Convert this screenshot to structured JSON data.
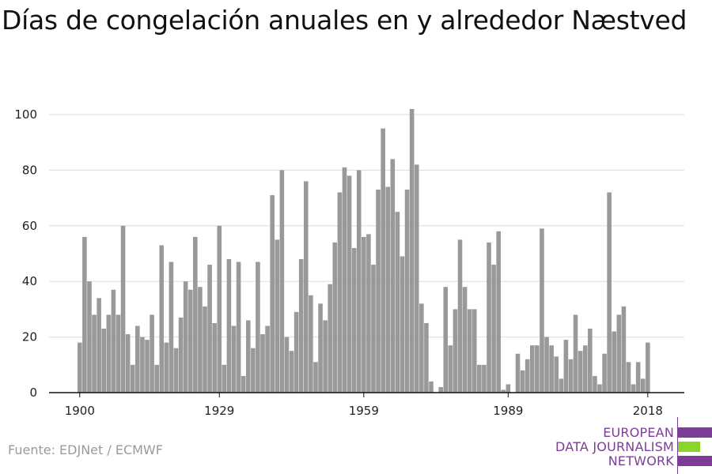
{
  "title": "Días de congelación anuales en y alrededor Næstved",
  "source": "Fuente: EDJNet / ECMWF",
  "logo": {
    "line1": "EUROPEAN",
    "line2": "DATA JOURNALISM",
    "line3": "NETWORK",
    "colors": {
      "purple": "#7d3c98",
      "green": "#8bd42a"
    }
  },
  "colors": {
    "bar": "#999999",
    "grid": "#dddddd",
    "axis": "#111111"
  },
  "chart_data": {
    "type": "bar",
    "title": "Días de congelación anuales en y alrededor Næstved",
    "xlabel": "",
    "ylabel": "",
    "ylim": [
      0,
      105
    ],
    "yticks": [
      0,
      20,
      40,
      60,
      80,
      100
    ],
    "xticks": [
      1900,
      1929,
      1959,
      1989,
      2018
    ],
    "grid": true,
    "x": [
      1900,
      1901,
      1902,
      1903,
      1904,
      1905,
      1906,
      1907,
      1908,
      1909,
      1910,
      1911,
      1912,
      1913,
      1914,
      1915,
      1916,
      1917,
      1918,
      1919,
      1920,
      1921,
      1922,
      1923,
      1924,
      1925,
      1926,
      1927,
      1928,
      1929,
      1930,
      1931,
      1932,
      1933,
      1934,
      1935,
      1936,
      1937,
      1938,
      1939,
      1940,
      1941,
      1942,
      1943,
      1944,
      1945,
      1946,
      1947,
      1948,
      1949,
      1950,
      1951,
      1952,
      1953,
      1954,
      1955,
      1956,
      1957,
      1958,
      1959,
      1960,
      1961,
      1962,
      1963,
      1964,
      1965,
      1966,
      1967,
      1968,
      1969,
      1970,
      1971,
      1972,
      1973,
      1974,
      1975,
      1976,
      1977,
      1978,
      1979,
      1980,
      1981,
      1982,
      1983,
      1984,
      1985,
      1986,
      1987,
      1988,
      1989,
      1990,
      1991,
      1992,
      1993,
      1994,
      1995,
      1996,
      1997,
      1998,
      1999,
      2000,
      2001,
      2002,
      2003,
      2004,
      2005,
      2006,
      2007,
      2008,
      2009,
      2010,
      2011,
      2012,
      2013,
      2014,
      2015,
      2016,
      2017,
      2018,
      2019
    ],
    "values": [
      18,
      56,
      40,
      28,
      34,
      23,
      28,
      37,
      28,
      60,
      21,
      10,
      24,
      20,
      19,
      28,
      10,
      53,
      18,
      47,
      16,
      27,
      40,
      37,
      56,
      38,
      31,
      46,
      25,
      60,
      10,
      48,
      24,
      47,
      6,
      26,
      16,
      47,
      21,
      24,
      71,
      55,
      80,
      20,
      15,
      29,
      48,
      76,
      35,
      11,
      32,
      26,
      39,
      54,
      72,
      81,
      78,
      52,
      80,
      56,
      57,
      46,
      73,
      95,
      74,
      84,
      65,
      49,
      73,
      102,
      82,
      32,
      25,
      4,
      0,
      2,
      38,
      17,
      30,
      55,
      38,
      30,
      30,
      10,
      10,
      54,
      46,
      58,
      1,
      3,
      0,
      14,
      8,
      12,
      17,
      17,
      59,
      20,
      17,
      13,
      5,
      19,
      12,
      28,
      15,
      17,
      23,
      6,
      3,
      14,
      72,
      22,
      28,
      31,
      11,
      3,
      11,
      5,
      18,
      0
    ]
  }
}
